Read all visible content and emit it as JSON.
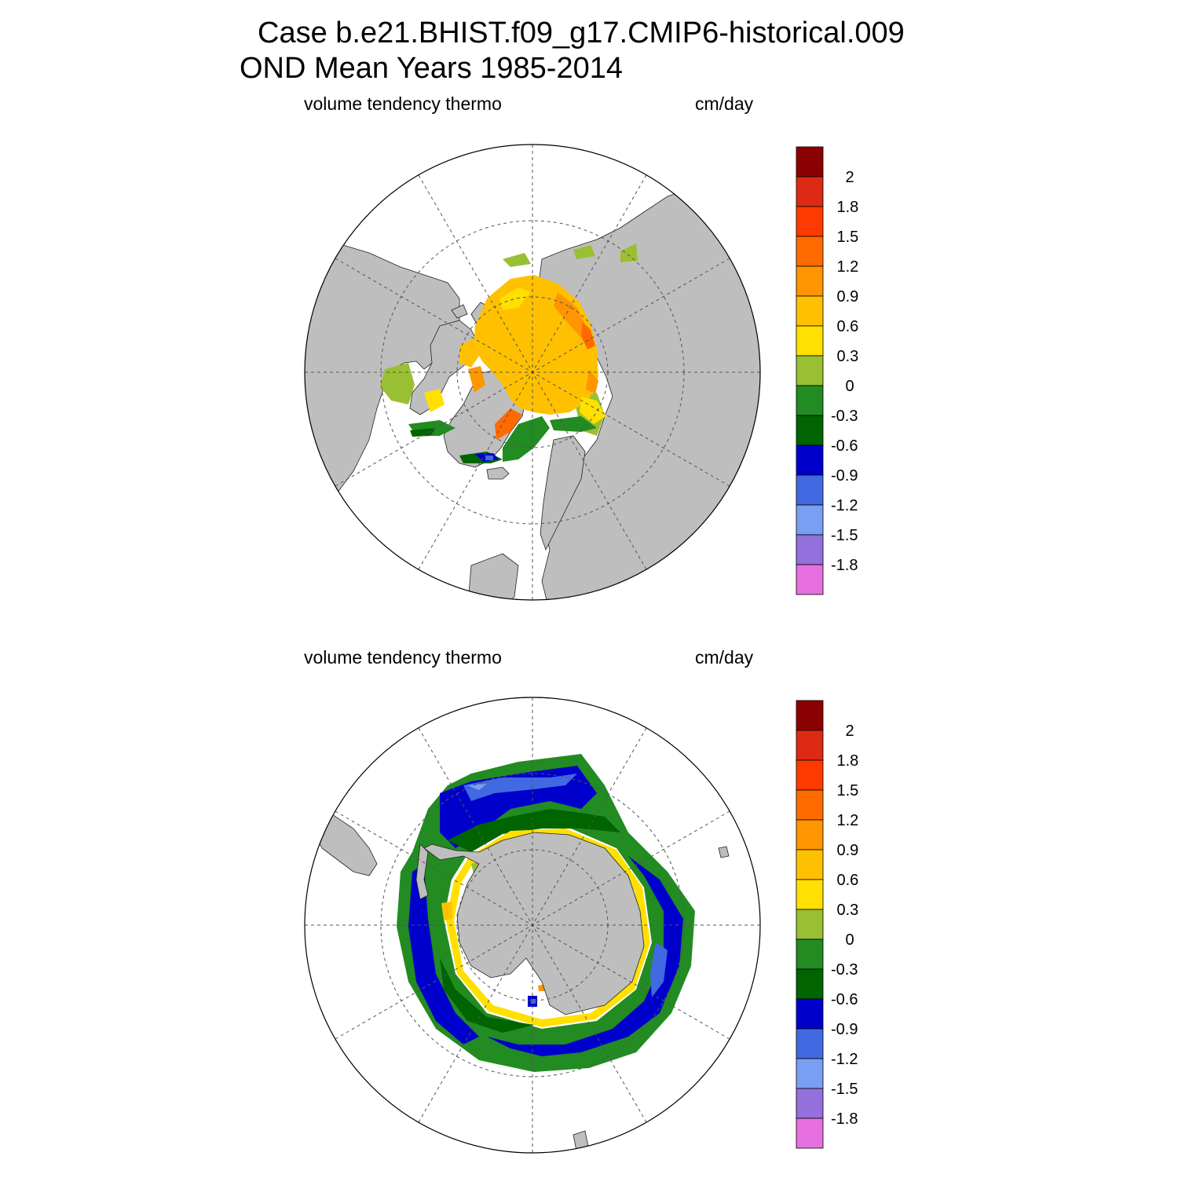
{
  "title_line1": "Case b.e21.BHIST.f09_g17.CMIP6-historical.009",
  "title_line2": "OND Mean   Years 1985-2014",
  "colors": {
    "land": "#bebebe",
    "water": "#ffffff",
    "outline": "#000000",
    "grid": "#555555"
  },
  "colorbar": {
    "levels": [
      "2",
      "1.8",
      "1.5",
      "1.2",
      "0.9",
      "0.6",
      "0.3",
      "0",
      "-0.3",
      "-0.6",
      "-0.9",
      "-1.2",
      "-1.5",
      "-1.8"
    ],
    "colors": [
      "#8b0000",
      "#dd2a14",
      "#ff3a00",
      "#ff6a00",
      "#ff9500",
      "#ffc000",
      "#ffe000",
      "#99bf33",
      "#228b22",
      "#006400",
      "#0000cd",
      "#4169e1",
      "#789ff2",
      "#9370db",
      "#e670e0"
    ]
  },
  "panels": [
    {
      "id": "north",
      "variable": "volume tendency thermo",
      "units": "cm/day",
      "hemisphere": "Arctic"
    },
    {
      "id": "south",
      "variable": "volume tendency thermo",
      "units": "cm/day",
      "hemisphere": "Antarctic"
    }
  ]
}
